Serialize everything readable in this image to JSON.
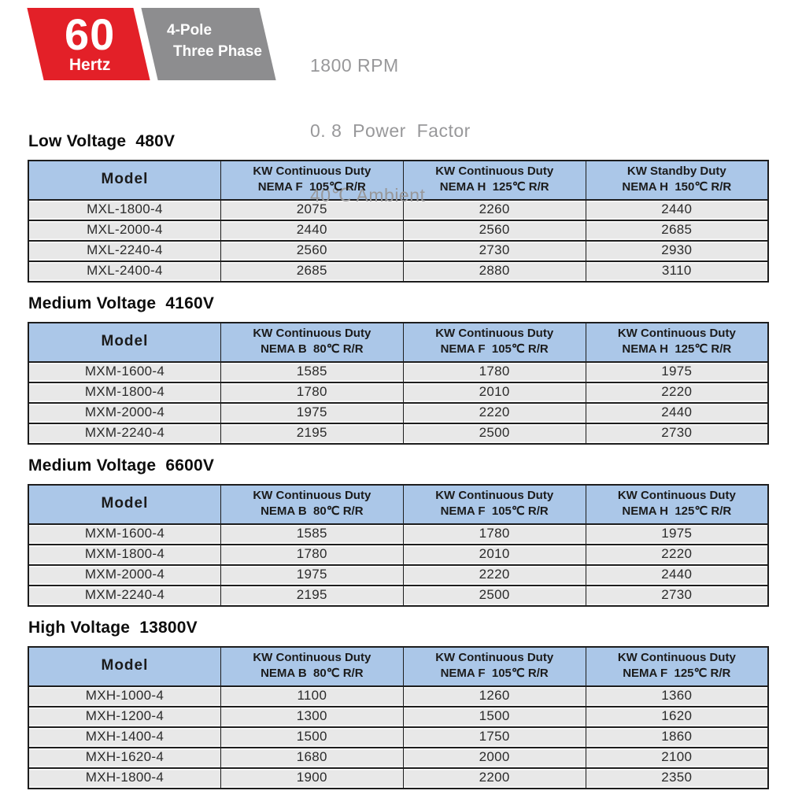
{
  "banner": {
    "frequency_value": "60",
    "frequency_unit": "Hertz",
    "pole_label": "4-Pole",
    "phase_label": "Three Phase",
    "specs": {
      "rpm": "1800 RPM",
      "power_factor": "0. 8  Power  Factor",
      "ambient": "40℃ Ambient"
    }
  },
  "colors": {
    "badge_red": "#e32028",
    "badge_gray": "#8d8d8f",
    "spec_text_gray": "#98989a",
    "header_blue": "#abc7e8",
    "row_gray": "#e8e8e8",
    "table_border": "#1d1d1d",
    "title_color": "#0d0d0d"
  },
  "tables": [
    {
      "title": "Low Voltage  480V",
      "columns": [
        {
          "line1": "Model",
          "line2": ""
        },
        {
          "line1": "KW Continuous Duty",
          "line2": "NEMA F  105℃ R/R"
        },
        {
          "line1": "KW Continuous Duty",
          "line2": "NEMA H  125℃ R/R"
        },
        {
          "line1": "KW Standby Duty",
          "line2": "NEMA H  150℃ R/R"
        }
      ],
      "rows": [
        [
          "MXL-1800-4",
          "2075",
          "2260",
          "2440"
        ],
        [
          "MXL-2000-4",
          "2440",
          "2560",
          "2685"
        ],
        [
          "MXL-2240-4",
          "2560",
          "2730",
          "2930"
        ],
        [
          "MXL-2400-4",
          "2685",
          "2880",
          "3110"
        ]
      ]
    },
    {
      "title": "Medium Voltage  4160V",
      "columns": [
        {
          "line1": "Model",
          "line2": ""
        },
        {
          "line1": "KW Continuous Duty",
          "line2": "NEMA B  80℃ R/R"
        },
        {
          "line1": "KW Continuous Duty",
          "line2": "NEMA F  105℃ R/R"
        },
        {
          "line1": "KW Continuous Duty",
          "line2": "NEMA H  125℃ R/R"
        }
      ],
      "rows": [
        [
          "MXM-1600-4",
          "1585",
          "1780",
          "1975"
        ],
        [
          "MXM-1800-4",
          "1780",
          "2010",
          "2220"
        ],
        [
          "MXM-2000-4",
          "1975",
          "2220",
          "2440"
        ],
        [
          "MXM-2240-4",
          "2195",
          "2500",
          "2730"
        ]
      ]
    },
    {
      "title": "Medium Voltage  6600V",
      "columns": [
        {
          "line1": "Model",
          "line2": ""
        },
        {
          "line1": "KW Continuous Duty",
          "line2": "NEMA B  80℃ R/R"
        },
        {
          "line1": "KW Continuous Duty",
          "line2": "NEMA F  105℃ R/R"
        },
        {
          "line1": "KW Continuous Duty",
          "line2": "NEMA H  125℃ R/R"
        }
      ],
      "rows": [
        [
          "MXM-1600-4",
          "1585",
          "1780",
          "1975"
        ],
        [
          "MXM-1800-4",
          "1780",
          "2010",
          "2220"
        ],
        [
          "MXM-2000-4",
          "1975",
          "2220",
          "2440"
        ],
        [
          "MXM-2240-4",
          "2195",
          "2500",
          "2730"
        ]
      ]
    },
    {
      "title": "High Voltage  13800V",
      "columns": [
        {
          "line1": "Model",
          "line2": ""
        },
        {
          "line1": "KW Continuous Duty",
          "line2": "NEMA B  80℃ R/R"
        },
        {
          "line1": "KW Continuous Duty",
          "line2": "NEMA F  105℃ R/R"
        },
        {
          "line1": "KW Continuous Duty",
          "line2": "NEMA F  125℃ R/R"
        }
      ],
      "rows": [
        [
          "MXH-1000-4",
          "1100",
          "1260",
          "1360"
        ],
        [
          "MXH-1200-4",
          "1300",
          "1500",
          "1620"
        ],
        [
          "MXH-1400-4",
          "1500",
          "1750",
          "1860"
        ],
        [
          "MXH-1620-4",
          "1680",
          "2000",
          "2100"
        ],
        [
          "MXH-1800-4",
          "1900",
          "2200",
          "2350"
        ]
      ]
    }
  ]
}
